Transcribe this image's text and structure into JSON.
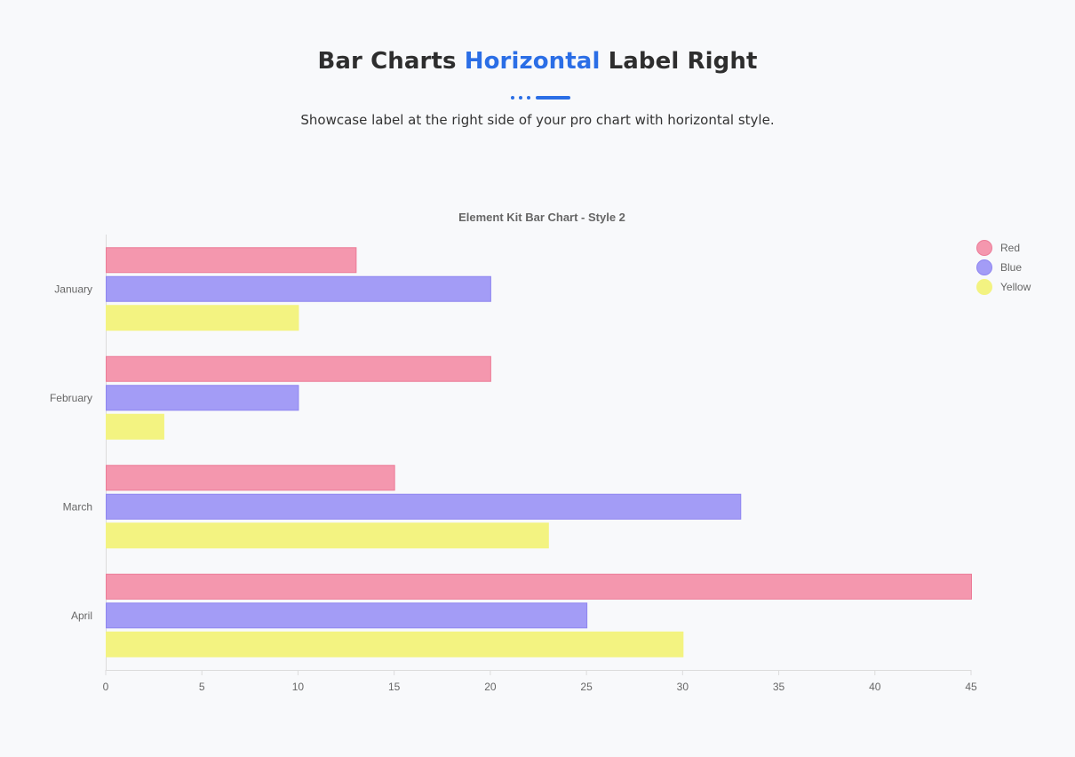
{
  "header": {
    "title_part1": "Bar Charts",
    "title_accent": "Horizontal",
    "title_part2": "Label Right",
    "subtitle": "Showcase label at the right side of your pro chart with horizontal style."
  },
  "colors": {
    "accent": "#2b6ee6"
  },
  "chart_data": {
    "type": "bar",
    "orientation": "horizontal",
    "title": "Element Kit Bar Chart - Style 2",
    "categories": [
      "January",
      "February",
      "March",
      "April"
    ],
    "series": [
      {
        "name": "Red",
        "values": [
          13,
          20,
          15,
          45
        ],
        "fill": "#f497ae",
        "stroke": "#ec7c98"
      },
      {
        "name": "Blue",
        "values": [
          20,
          10,
          33,
          25
        ],
        "fill": "#a39cf6",
        "stroke": "#8f86f0"
      },
      {
        "name": "Yellow",
        "values": [
          10,
          3,
          23,
          30
        ],
        "fill": "#f3f381",
        "stroke": "#f3f381"
      }
    ],
    "xlim": [
      0,
      45
    ],
    "xticks": [
      0,
      5,
      10,
      15,
      20,
      25,
      30,
      35,
      40,
      45
    ],
    "grid": false,
    "legend_position": "top-right"
  }
}
